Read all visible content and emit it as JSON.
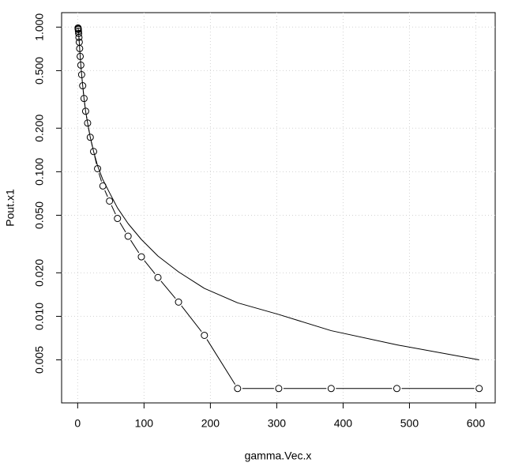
{
  "chart_data": {
    "type": "line",
    "x_label": "gamma.Vec.x",
    "y_label": "Pout.x1",
    "x": [
      605,
      481,
      382,
      303,
      241,
      191,
      152,
      121,
      96,
      76,
      60,
      48,
      38,
      30,
      24,
      19,
      15,
      12,
      9.6,
      7.6,
      6,
      4.8,
      3.8,
      3,
      2.4,
      1.9,
      1.5,
      1.2,
      0.96,
      0.76,
      0.6
    ],
    "series": [
      {
        "color": "#000000",
        "markers": true,
        "values": [
          0.00317,
          0.00317,
          0.00317,
          0.00317,
          0.00317,
          0.00739,
          0.01255,
          0.01856,
          0.0258,
          0.0358,
          0.0475,
          0.0627,
          0.0797,
          0.105,
          0.138,
          0.173,
          0.217,
          0.262,
          0.321,
          0.393,
          0.469,
          0.546,
          0.627,
          0.711,
          0.787,
          0.849,
          0.904,
          0.937,
          0.963,
          0.975,
          0.987
        ]
      },
      {
        "color": "#000000",
        "markers": false,
        "values": [
          0.005,
          0.00635,
          0.00796,
          0.0103,
          0.0124,
          0.0156,
          0.0203,
          0.0261,
          0.034,
          0.0438,
          0.0562,
          0.0716,
          0.088,
          0.11,
          0.138,
          0.173,
          0.217,
          0.262,
          0.321,
          0.393,
          0.469,
          0.546,
          0.627,
          0.711,
          0.787,
          0.849,
          0.904,
          0.937,
          0.963,
          0.975,
          0.987
        ]
      }
    ],
    "xlim": [
      -24.2,
      629.2
    ],
    "xticks": [
      0,
      100,
      200,
      300,
      400,
      500,
      600
    ],
    "ylim": [
      0.00252,
      1.259
    ],
    "log_y": true,
    "grid": true,
    "yticks": [
      {
        "value": 0.005,
        "label": "0.005"
      },
      {
        "value": 0.01,
        "label": "0.010"
      },
      {
        "value": 0.02,
        "label": "0.020"
      },
      {
        "value": 0.05,
        "label": "0.050"
      },
      {
        "value": 0.1,
        "label": "0.100"
      },
      {
        "value": 0.2,
        "label": "0.200"
      },
      {
        "value": 0.5,
        "label": "0.500"
      },
      {
        "value": 1,
        "label": "1.000"
      }
    ]
  }
}
